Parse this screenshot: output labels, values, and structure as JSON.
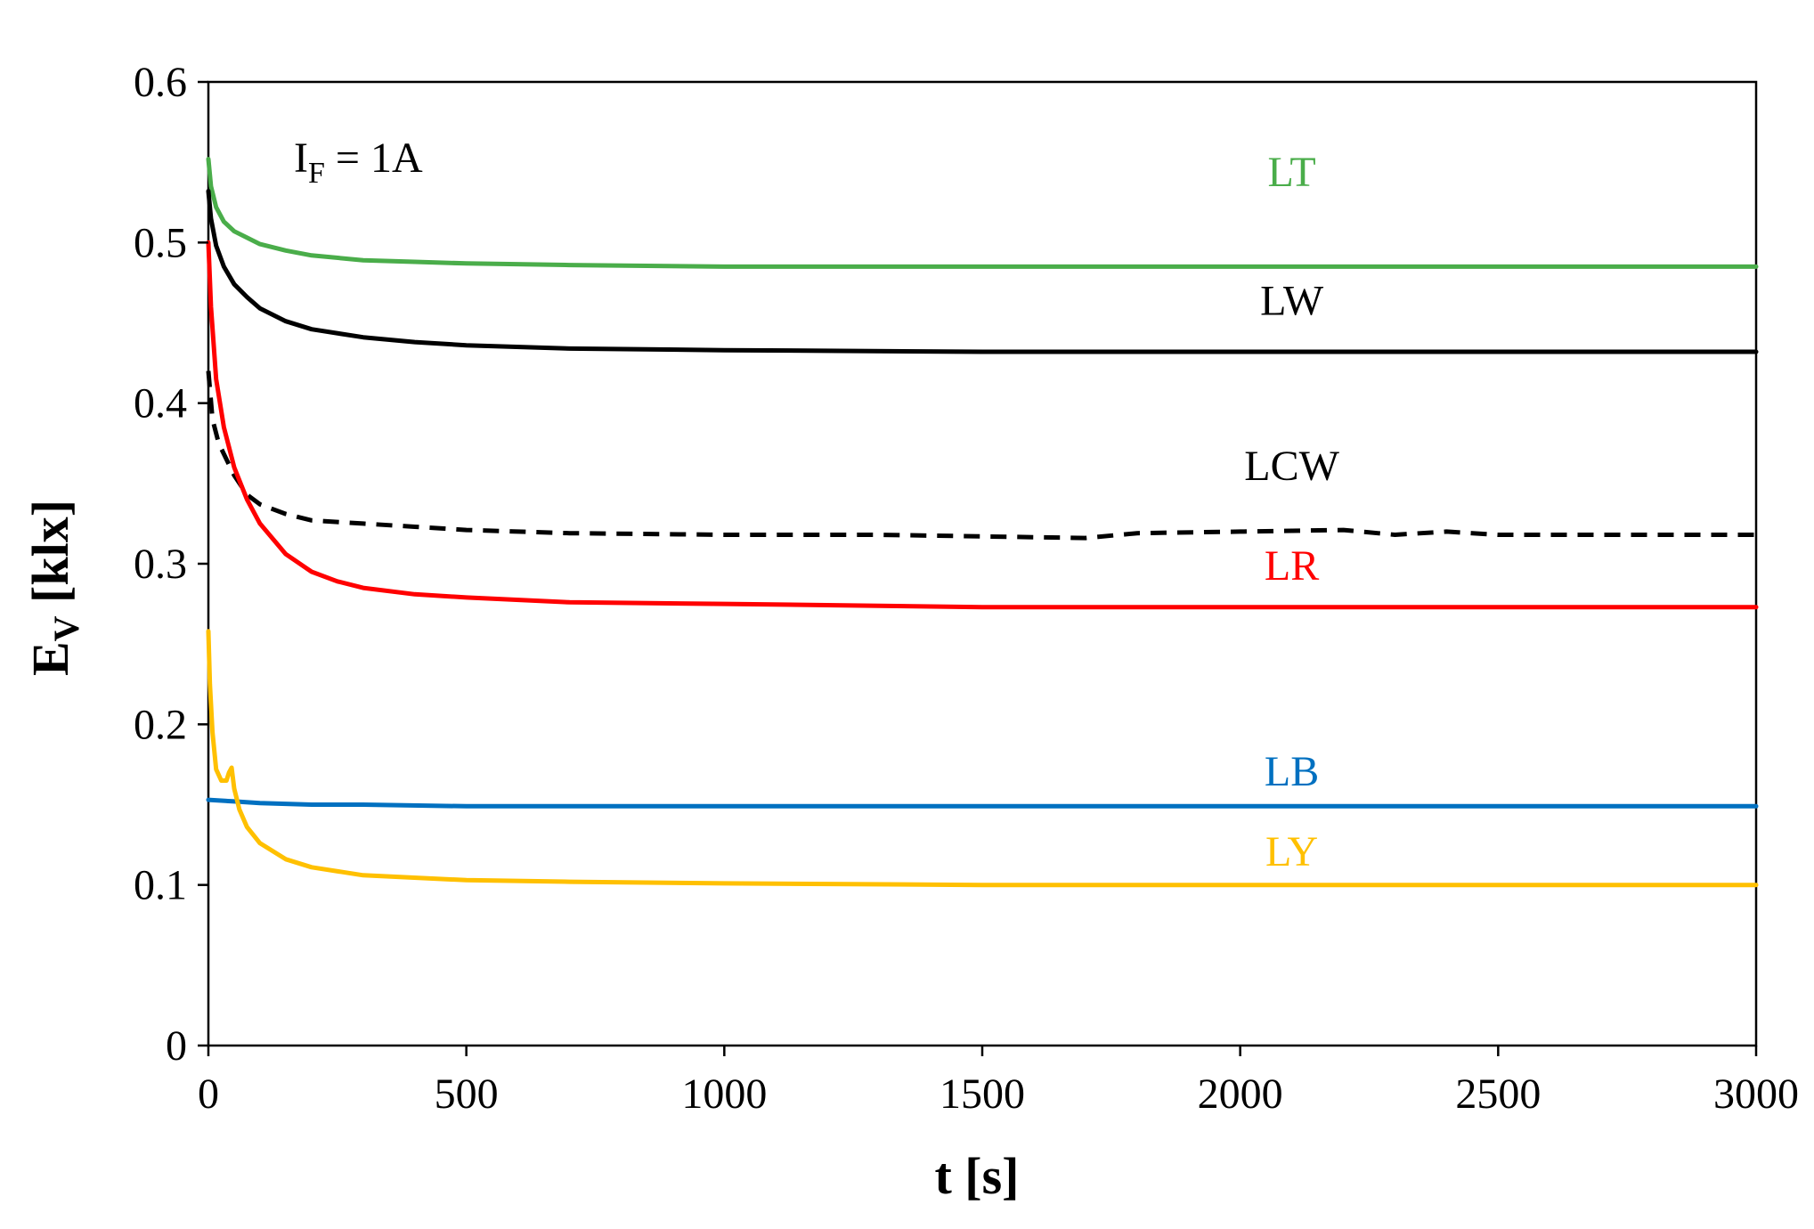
{
  "chart_data": {
    "type": "line",
    "title": "",
    "xlabel": "t [s]",
    "ylabel_main": "E",
    "ylabel_sub": "V",
    "ylabel_unit": " [klx]",
    "xlim": [
      0,
      3000
    ],
    "ylim": [
      0,
      0.6
    ],
    "xticks": [
      0,
      500,
      1000,
      1500,
      2000,
      2500,
      3000
    ],
    "xtick_labels": [
      "0",
      "500",
      "1000",
      "1500",
      "2000",
      "2500",
      "3000"
    ],
    "yticks": [
      0,
      0.1,
      0.2,
      0.3,
      0.4,
      0.5,
      0.6
    ],
    "ytick_labels": [
      "0",
      "0.1",
      "0.2",
      "0.3",
      "0.4",
      "0.5",
      "0.6"
    ],
    "grid": false,
    "annotation": {
      "main": "I",
      "sub": "F",
      "rest": " = 1A"
    },
    "series": [
      {
        "name": "LT",
        "color": "#4aad4a",
        "dashed": false,
        "label_at": [
          2100,
          0.535
        ],
        "x": [
          0,
          5,
          15,
          30,
          50,
          75,
          100,
          150,
          200,
          300,
          400,
          500,
          700,
          1000,
          1500,
          2000,
          2500,
          3000
        ],
        "y": [
          0.552,
          0.535,
          0.522,
          0.513,
          0.507,
          0.503,
          0.499,
          0.495,
          0.492,
          0.489,
          0.488,
          0.487,
          0.486,
          0.485,
          0.485,
          0.485,
          0.485,
          0.485
        ]
      },
      {
        "name": "LW",
        "color": "#000000",
        "dashed": false,
        "label_at": [
          2100,
          0.455
        ],
        "x": [
          0,
          5,
          15,
          30,
          50,
          75,
          100,
          150,
          200,
          300,
          400,
          500,
          700,
          1000,
          1500,
          2000,
          2500,
          3000
        ],
        "y": [
          0.532,
          0.515,
          0.498,
          0.485,
          0.474,
          0.466,
          0.459,
          0.451,
          0.446,
          0.441,
          0.438,
          0.436,
          0.434,
          0.433,
          0.432,
          0.432,
          0.432,
          0.432
        ]
      },
      {
        "name": "LCW",
        "color": "#000000",
        "dashed": true,
        "label_at": [
          2100,
          0.352
        ],
        "x": [
          0,
          8,
          20,
          35,
          50,
          75,
          100,
          150,
          200,
          250,
          300,
          400,
          500,
          700,
          1000,
          1300,
          1500,
          1700,
          1800,
          2000,
          2200,
          2300,
          2400,
          2500,
          3000
        ],
        "y": [
          0.42,
          0.39,
          0.375,
          0.365,
          0.355,
          0.343,
          0.337,
          0.331,
          0.327,
          0.326,
          0.325,
          0.323,
          0.321,
          0.319,
          0.318,
          0.318,
          0.317,
          0.316,
          0.319,
          0.32,
          0.321,
          0.318,
          0.32,
          0.318,
          0.318
        ]
      },
      {
        "name": "LR",
        "color": "#ff0000",
        "dashed": false,
        "label_at": [
          2100,
          0.29
        ],
        "x": [
          0,
          5,
          15,
          30,
          50,
          75,
          100,
          150,
          200,
          250,
          300,
          400,
          500,
          700,
          1000,
          1500,
          2000,
          2500,
          3000
        ],
        "y": [
          0.5,
          0.46,
          0.415,
          0.385,
          0.36,
          0.34,
          0.325,
          0.306,
          0.295,
          0.289,
          0.285,
          0.281,
          0.279,
          0.276,
          0.275,
          0.273,
          0.273,
          0.273,
          0.273
        ]
      },
      {
        "name": "LB",
        "color": "#0070c0",
        "dashed": false,
        "label_at": [
          2100,
          0.162
        ],
        "x": [
          0,
          50,
          100,
          200,
          300,
          500,
          800,
          1000,
          1500,
          2000,
          2500,
          3000
        ],
        "y": [
          0.153,
          0.152,
          0.151,
          0.15,
          0.15,
          0.149,
          0.149,
          0.149,
          0.149,
          0.149,
          0.149,
          0.149
        ]
      },
      {
        "name": "LY",
        "color": "#ffc000",
        "dashed": false,
        "label_at": [
          2100,
          0.112
        ],
        "x": [
          0,
          3,
          8,
          15,
          25,
          35,
          40,
          45,
          50,
          60,
          75,
          100,
          150,
          200,
          300,
          500,
          700,
          1000,
          1500,
          2000,
          2500,
          3000
        ],
        "y": [
          0.258,
          0.225,
          0.195,
          0.172,
          0.165,
          0.165,
          0.17,
          0.173,
          0.16,
          0.147,
          0.136,
          0.126,
          0.116,
          0.111,
          0.106,
          0.103,
          0.102,
          0.101,
          0.1,
          0.1,
          0.1,
          0.1
        ]
      }
    ]
  }
}
